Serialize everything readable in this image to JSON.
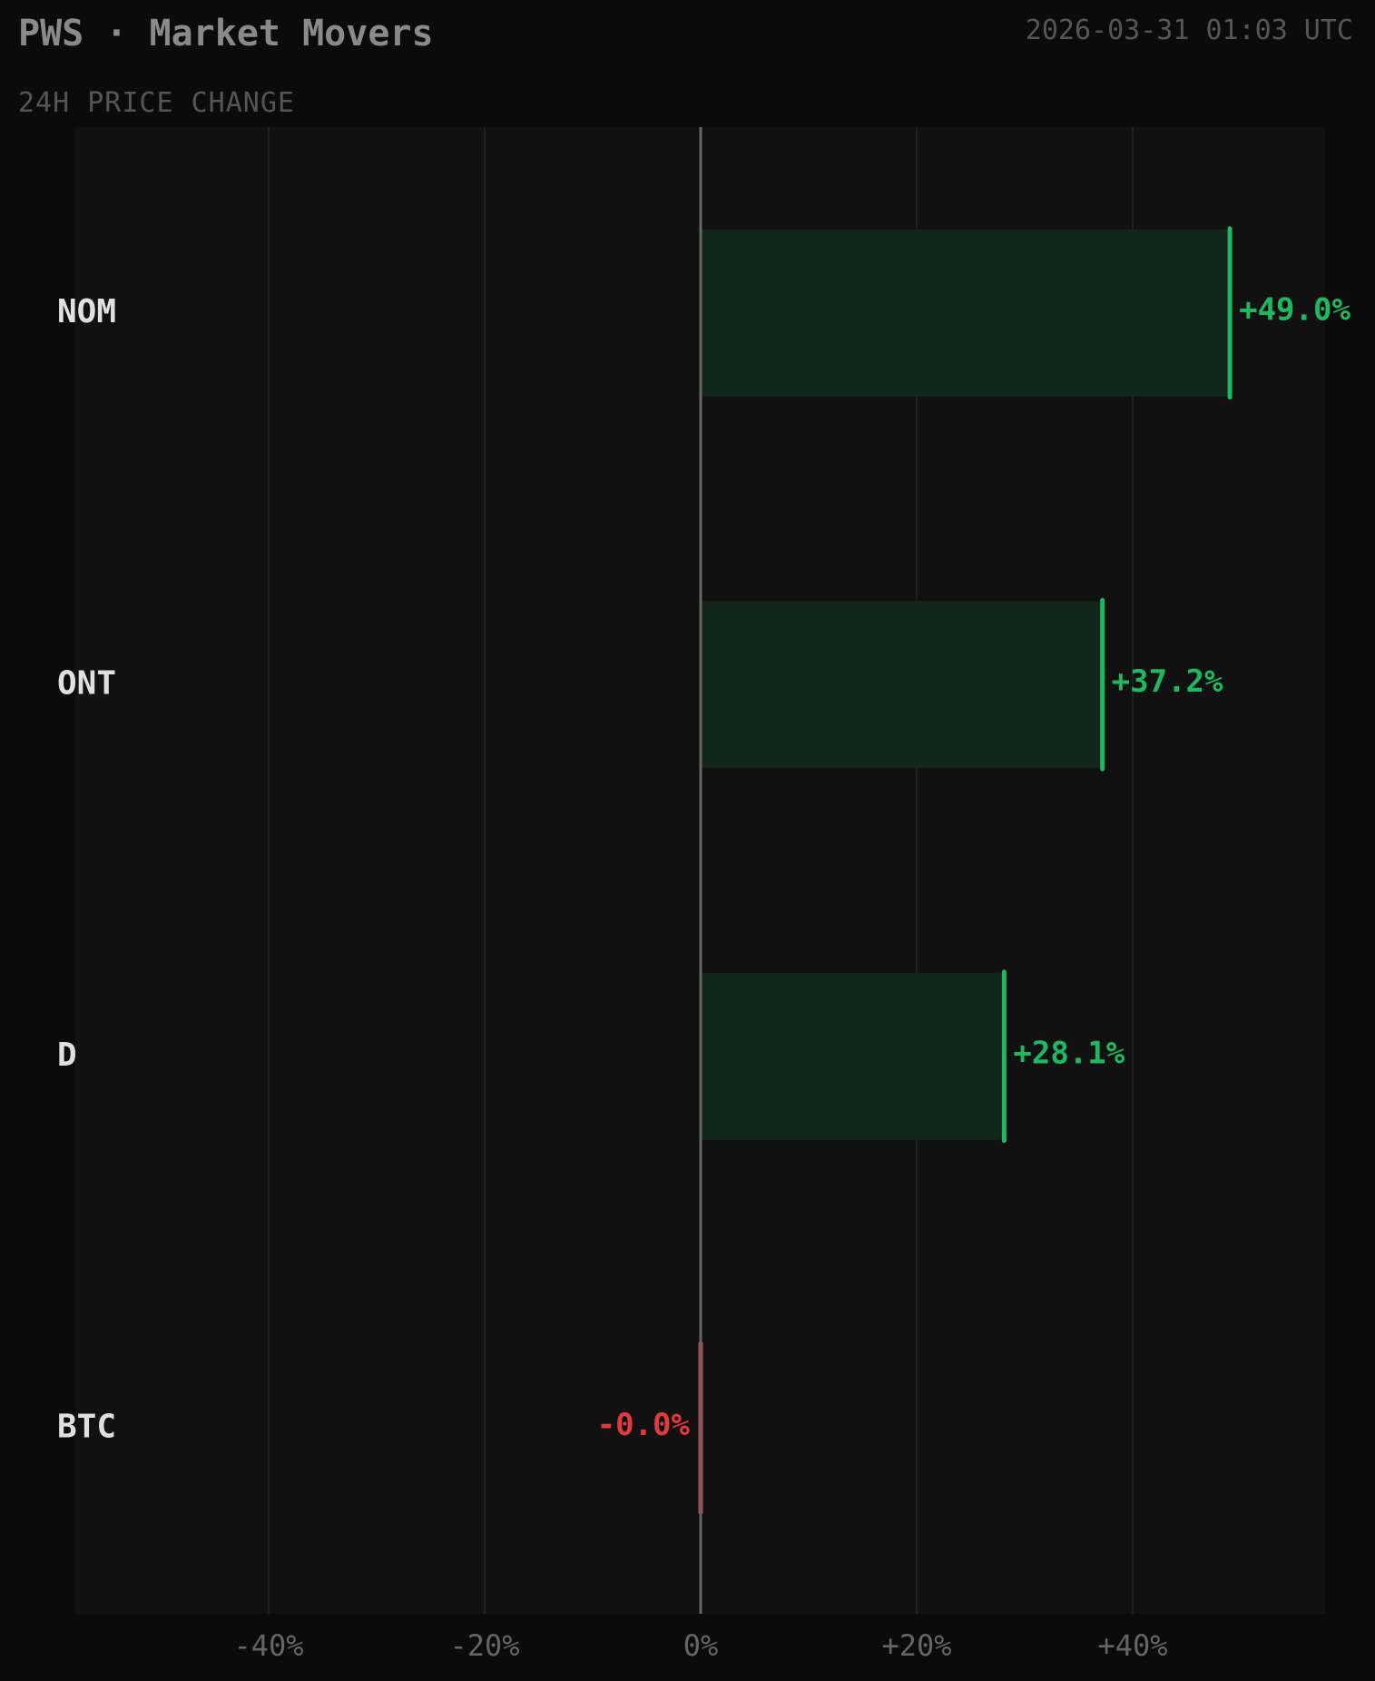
{
  "header": {
    "title": "PWS · Market Movers",
    "timestamp": "2026-03-31 01:03 UTC"
  },
  "chart_data": {
    "type": "bar",
    "orientation": "horizontal",
    "title": "24H PRICE CHANGE",
    "categories": [
      "NOM",
      "ONT",
      "D",
      "BTC"
    ],
    "values": [
      49.0,
      37.2,
      28.1,
      -0.0
    ],
    "value_labels": [
      "+49.0%",
      "+37.2%",
      "+28.1%",
      "-0.0%"
    ],
    "xlim": [
      -58,
      58
    ],
    "xticks": [
      -40,
      -20,
      0,
      20,
      40
    ],
    "xtick_labels": [
      "-40%",
      "-20%",
      "0%",
      "+20%",
      "+40%"
    ],
    "grid": true,
    "colors": {
      "positive": "#1db85f",
      "positive_fill": "#12261b",
      "negative": "#e03a3a",
      "background": "#0b0b0b",
      "plot_background": "#111111",
      "grid": "#262626",
      "zero_line": "#666666",
      "category_label": "#e0e0e0",
      "tick_label": "#666666"
    }
  }
}
